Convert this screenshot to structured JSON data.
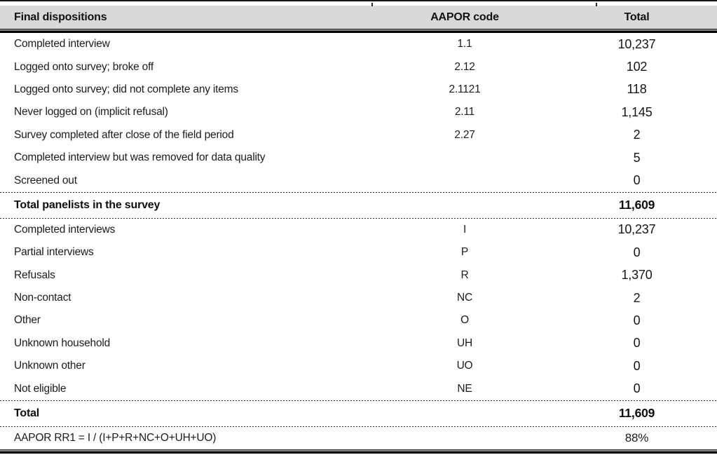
{
  "title": "Final dispositions table",
  "colors": {
    "header_background": "#d9d9d9",
    "rule": "#000000",
    "text": "#1c1c1c"
  },
  "table": {
    "header": {
      "dispositions": "Final dispositions",
      "code": "AAPOR code",
      "total": "Total"
    },
    "panel_rows": [
      {
        "label": "Completed interview",
        "code": "1.1",
        "total": "10,237"
      },
      {
        "label": "Logged onto survey; broke off",
        "code": "2.12",
        "total": "102"
      },
      {
        "label": "Logged onto survey; did not complete any items",
        "code": "2.1121",
        "total": "118"
      },
      {
        "label": "Never logged on (implicit refusal)",
        "code": "2.11",
        "total": "1,145"
      },
      {
        "label": "Survey completed after close of the field period",
        "code": "2.27",
        "total": "2"
      },
      {
        "label": "Completed interview but was removed for data quality",
        "code": "",
        "total": "5"
      },
      {
        "label": "Screened out",
        "code": "",
        "total": "0"
      }
    ],
    "total_panelists": {
      "label": "Total panelists in the survey",
      "code": "",
      "total": "11,609"
    },
    "aapor_rows": [
      {
        "label": "Completed interviews",
        "code": "I",
        "total": "10,237"
      },
      {
        "label": "Partial interviews",
        "code": "P",
        "total": "0"
      },
      {
        "label": "Refusals",
        "code": "R",
        "total": "1,370"
      },
      {
        "label": "Non-contact",
        "code": "NC",
        "total": "2"
      },
      {
        "label": "Other",
        "code": "O",
        "total": "0"
      },
      {
        "label": "Unknown household",
        "code": "UH",
        "total": "0"
      },
      {
        "label": "Unknown other",
        "code": "UO",
        "total": "0"
      },
      {
        "label": "Not eligible",
        "code": "NE",
        "total": "0"
      }
    ],
    "grand_total": {
      "label": "Total",
      "code": "",
      "total": "11,609"
    },
    "response_rate": {
      "label": "AAPOR RR1 = I / (I+P+R+NC+O+UH+UO)",
      "code": "",
      "total": "88%"
    }
  }
}
